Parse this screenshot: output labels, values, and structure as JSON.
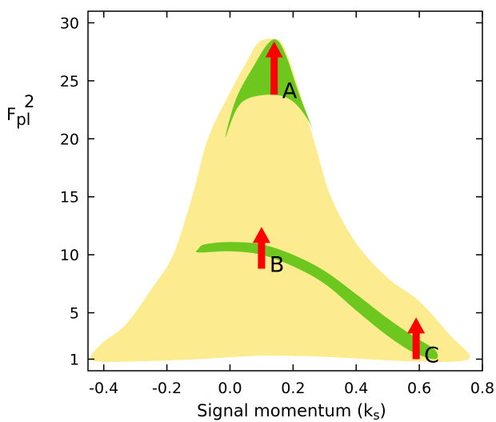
{
  "chart_data": {
    "type": "area",
    "xlabel": "Signal momentum  (k",
    "xlabel_sub": "s",
    "xlabel_close": ")",
    "ylabel_base": "F",
    "ylabel_sub": "pl",
    "ylabel_sup": "2",
    "xlim": [
      -0.45,
      0.8
    ],
    "ylim": [
      0,
      31
    ],
    "x_ticks": [
      -0.4,
      -0.2,
      0.0,
      0.2,
      0.4,
      0.6,
      0.8
    ],
    "x_tick_labels": [
      "-0.4",
      "-0.2",
      "0.0",
      "0.2",
      "0.4",
      "0.6",
      "0.8"
    ],
    "y_ticks": [
      1,
      5,
      10,
      15,
      20,
      25,
      30
    ],
    "y_tick_labels": [
      "1",
      "5",
      "10",
      "15",
      "20",
      "25",
      "30"
    ],
    "colors": {
      "outer_region": "#fdeb8f",
      "inner_region": "#6ec71e",
      "arrow": "#ff0000"
    },
    "regions": [
      {
        "id": "outer",
        "points": [
          [
            -0.44,
            1.3
          ],
          [
            -0.42,
            0.8
          ],
          [
            -0.3,
            0.8
          ],
          [
            -0.1,
            1.0
          ],
          [
            0.1,
            1.3
          ],
          [
            0.3,
            1.2
          ],
          [
            0.5,
            0.9
          ],
          [
            0.6,
            0.8
          ],
          [
            0.72,
            0.8
          ],
          [
            0.76,
            1.3
          ],
          [
            0.7,
            3.0
          ],
          [
            0.6,
            6.0
          ],
          [
            0.5,
            8.0
          ],
          [
            0.4,
            11.0
          ],
          [
            0.32,
            15.0
          ],
          [
            0.27,
            19.5
          ],
          [
            0.21,
            25.0
          ],
          [
            0.17,
            28.0
          ],
          [
            0.14,
            28.6
          ],
          [
            0.09,
            28.3
          ],
          [
            0.05,
            26.5
          ],
          [
            0.0,
            24.0
          ],
          [
            -0.07,
            20.0
          ],
          [
            -0.12,
            15.0
          ],
          [
            -0.18,
            10.0
          ],
          [
            -0.25,
            7.0
          ],
          [
            -0.33,
            4.0
          ],
          [
            -0.4,
            2.5
          ]
        ]
      },
      {
        "id": "peak",
        "points": [
          [
            -0.015,
            20.1
          ],
          [
            0.02,
            22.5
          ],
          [
            0.06,
            23.5
          ],
          [
            0.14,
            23.8
          ],
          [
            0.2,
            23.2
          ],
          [
            0.25,
            21.5
          ],
          [
            0.28,
            19.6
          ],
          [
            0.22,
            23.8
          ],
          [
            0.18,
            27.0
          ],
          [
            0.15,
            28.5
          ],
          [
            0.12,
            28.2
          ],
          [
            0.08,
            26.5
          ],
          [
            0.02,
            23.5
          ]
        ]
      },
      {
        "id": "band",
        "points": [
          [
            -0.1,
            10.5
          ],
          [
            -0.08,
            10.9
          ],
          [
            0.0,
            11.1
          ],
          [
            0.1,
            10.9
          ],
          [
            0.2,
            10.0
          ],
          [
            0.3,
            8.6
          ],
          [
            0.4,
            6.6
          ],
          [
            0.5,
            4.5
          ],
          [
            0.58,
            3.0
          ],
          [
            0.65,
            1.8
          ],
          [
            0.65,
            1.0
          ],
          [
            0.58,
            1.6
          ],
          [
            0.5,
            3.0
          ],
          [
            0.4,
            5.2
          ],
          [
            0.3,
            7.5
          ],
          [
            0.2,
            9.0
          ],
          [
            0.1,
            10.0
          ],
          [
            0.0,
            10.3
          ],
          [
            -0.1,
            10.2
          ]
        ]
      }
    ],
    "arrows": [
      {
        "label": "A",
        "x": 0.14,
        "y_start": 23.8,
        "y_end": 28.4
      },
      {
        "label": "B",
        "x": 0.1,
        "y_start": 8.8,
        "y_end": 12.4
      },
      {
        "label": "C",
        "x": 0.59,
        "y_start": 1.0,
        "y_end": 4.6
      }
    ]
  }
}
